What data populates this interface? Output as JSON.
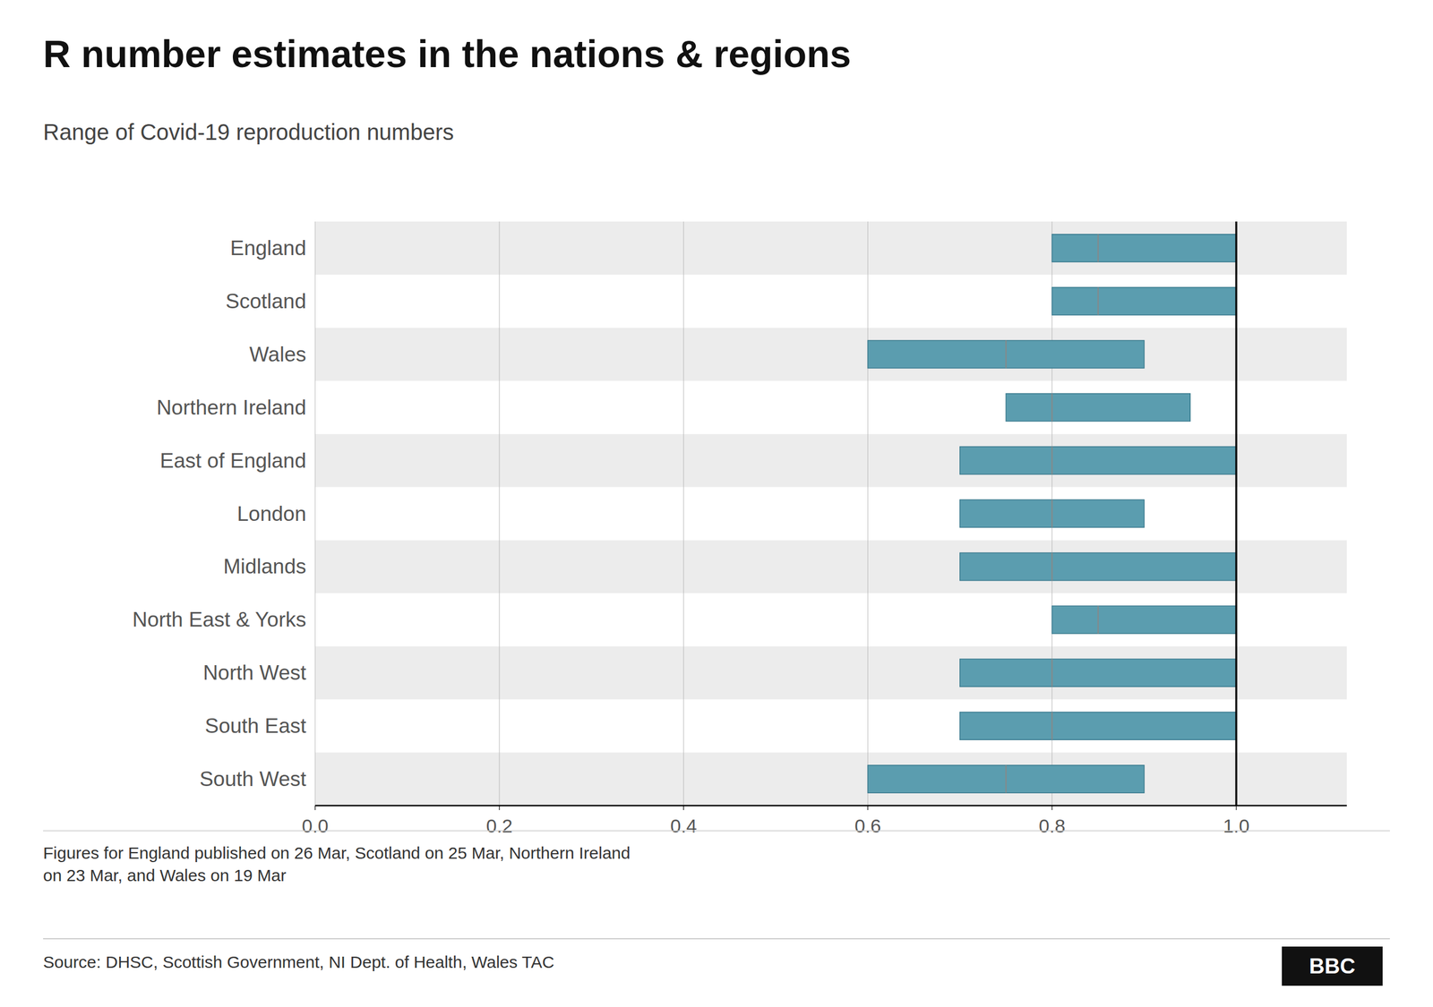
{
  "chart_data": {
    "type": "range",
    "orientation": "horizontal",
    "title": "R number estimates in the nations & regions",
    "subtitle": "Range of Covid-19 reproduction numbers",
    "categories": [
      "South West",
      "South East",
      "North West",
      "North East & Yorks",
      "Midlands",
      "London",
      "East of England",
      "Northern Ireland",
      "Wales",
      "Scotland",
      "England"
    ],
    "low": [
      0.6,
      0.7,
      0.7,
      0.8,
      0.7,
      0.7,
      0.7,
      0.75,
      0.6,
      0.8,
      0.8
    ],
    "high": [
      0.9,
      1.0,
      1.0,
      1.0,
      1.0,
      0.9,
      1.0,
      0.95,
      0.9,
      1.0,
      1.0
    ],
    "mid": [
      0.75,
      0.8,
      0.8,
      0.85,
      0.8,
      0.8,
      0.8,
      0.8,
      0.75,
      0.85,
      0.85
    ],
    "reference_line": 1.0,
    "color": "#5b9daf",
    "xlim": [
      0.0,
      1.12
    ],
    "xticks": [
      {
        "value": 0.0,
        "label": "0.0"
      },
      0.2,
      0.4,
      0.6,
      0.8,
      {
        "value": 1.0,
        "label": "1.0"
      }
    ],
    "grid": true,
    "footnote": "Figures for England published on 26 Mar, Scotland on 25 Mar, Northern Ireland\non 23 Mar, and Wales on 19 Mar",
    "source": "Source: DHSC, Scottish Government, NI Dept. of Health, Wales TAC",
    "logo": "BBC"
  }
}
